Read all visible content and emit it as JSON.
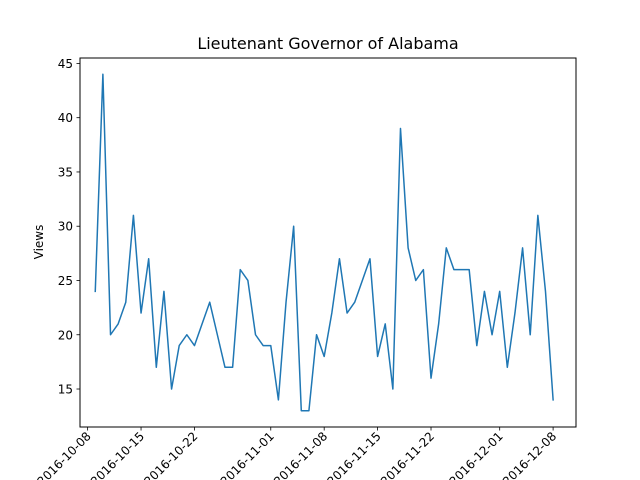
{
  "chart_data": {
    "type": "line",
    "title": "Lieutenant Governor of Alabama",
    "xlabel": "",
    "ylabel": "Views",
    "x_tick_labels": [
      "2016-10-08",
      "2016-10-15",
      "2016-10-22",
      "2016-11-01",
      "2016-11-08",
      "2016-11-15",
      "2016-11-22",
      "2016-12-01",
      "2016-12-08"
    ],
    "y_tick_labels": [
      "15",
      "20",
      "25",
      "30",
      "35",
      "40",
      "45"
    ],
    "ylim": [
      11.5,
      45.5
    ],
    "xlim": [
      "2016-10-07",
      "2016-12-11"
    ],
    "grid": false,
    "line_color": "#1f77b4",
    "series": [
      {
        "x": [
          "2016-10-09",
          "2016-10-10",
          "2016-10-11",
          "2016-10-12",
          "2016-10-13",
          "2016-10-14",
          "2016-10-15",
          "2016-10-16",
          "2016-10-17",
          "2016-10-18",
          "2016-10-19",
          "2016-10-20",
          "2016-10-21",
          "2016-10-22",
          "2016-10-23",
          "2016-10-24",
          "2016-10-25",
          "2016-10-26",
          "2016-10-27",
          "2016-10-28",
          "2016-10-29",
          "2016-10-30",
          "2016-10-31",
          "2016-11-01",
          "2016-11-02",
          "2016-11-03",
          "2016-11-04",
          "2016-11-05",
          "2016-11-06",
          "2016-11-07",
          "2016-11-08",
          "2016-11-09",
          "2016-11-10",
          "2016-11-11",
          "2016-11-12",
          "2016-11-13",
          "2016-11-14",
          "2016-11-15",
          "2016-11-16",
          "2016-11-17",
          "2016-11-18",
          "2016-11-19",
          "2016-11-20",
          "2016-11-21",
          "2016-11-22",
          "2016-11-23",
          "2016-11-24",
          "2016-11-25",
          "2016-11-26",
          "2016-11-27",
          "2016-11-28",
          "2016-11-29",
          "2016-11-30",
          "2016-12-01",
          "2016-12-02",
          "2016-12-03",
          "2016-12-04",
          "2016-12-05",
          "2016-12-06",
          "2016-12-07",
          "2016-12-08"
        ],
        "values": [
          24,
          44,
          20,
          21,
          23,
          31,
          22,
          27,
          17,
          24,
          15,
          19,
          20,
          19,
          21,
          23,
          20,
          17,
          17,
          26,
          25,
          20,
          19,
          19,
          14,
          23,
          30,
          13,
          13,
          20,
          18,
          22,
          27,
          22,
          23,
          25,
          27,
          18,
          21,
          15,
          39,
          28,
          25,
          26,
          16,
          21,
          28,
          26,
          26,
          26,
          19,
          24,
          20,
          24,
          17,
          22,
          28,
          20,
          31,
          24,
          14
        ]
      }
    ]
  }
}
